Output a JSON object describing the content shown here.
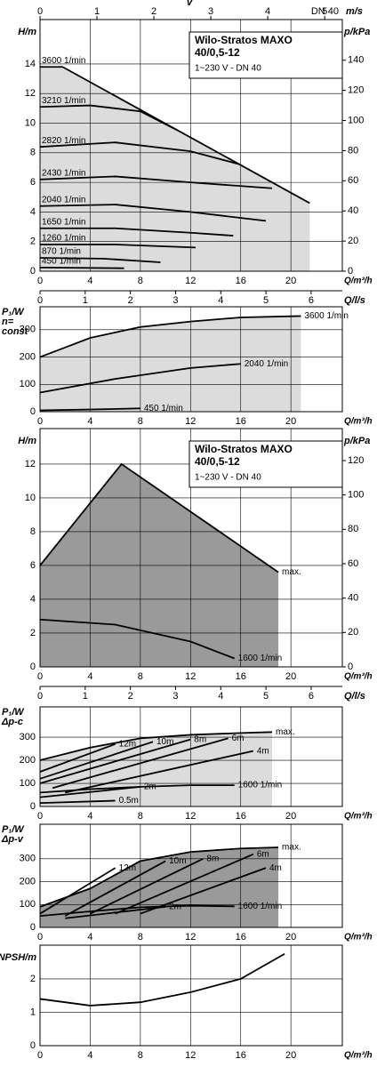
{
  "chart_data": [
    {
      "type": "line",
      "title_lines": [
        "Wilo-Stratos MAXO",
        "40/0,5-12"
      ],
      "subtitle": "1~230 V - DN 40",
      "y_label": "H/m",
      "y2_label": "p/kPa",
      "x_label": "Q/m³/h",
      "x2_label": "Q/l/s",
      "x3_label": "v",
      "x3_unit": "m/s",
      "x3_note": "DN 40",
      "xlim": [
        0,
        24.1
      ],
      "xticks": [
        0,
        4,
        8,
        12,
        16,
        20
      ],
      "x2lim": [
        0,
        6.69
      ],
      "x2ticks": [
        0,
        1,
        2,
        3,
        4,
        5,
        6
      ],
      "x3lim": [
        0,
        5.31
      ],
      "x3ticks": [
        0,
        1,
        2,
        3,
        4,
        5
      ],
      "ylim": [
        0,
        17
      ],
      "yticks": [
        0,
        2,
        4,
        6,
        8,
        10,
        12,
        14
      ],
      "y2lim": [
        0,
        167
      ],
      "y2ticks": [
        0,
        20,
        40,
        60,
        80,
        100,
        120,
        140
      ],
      "grid": true,
      "shade_color": "#dcdcdc",
      "series_label": "start",
      "series": [
        {
          "name": "3600 1/min",
          "color": "#000000",
          "x": [
            0,
            1.8,
            21.5
          ],
          "values": [
            13.8,
            13.8,
            4.6
          ]
        },
        {
          "name": "3210 1/min",
          "color": "#000000",
          "x": [
            0,
            4,
            8,
            11
          ],
          "values": [
            11.1,
            11.2,
            10.8,
            9.5
          ]
        },
        {
          "name": "2820 1/min",
          "color": "#000000",
          "x": [
            0,
            6,
            12,
            16
          ],
          "values": [
            8.4,
            8.7,
            8.1,
            7.2
          ]
        },
        {
          "name": "2430 1/min",
          "color": "#000000",
          "x": [
            0,
            6,
            12,
            18.5
          ],
          "values": [
            6.2,
            6.4,
            6.0,
            5.6
          ]
        },
        {
          "name": "2040 1/min",
          "color": "#000000",
          "x": [
            0,
            6,
            12,
            18
          ],
          "values": [
            4.4,
            4.5,
            4.0,
            3.4
          ]
        },
        {
          "name": "1650 1/min",
          "color": "#000000",
          "x": [
            0,
            6,
            12,
            15.4
          ],
          "values": [
            2.9,
            2.9,
            2.6,
            2.4
          ]
        },
        {
          "name": "1260 1/min",
          "color": "#000000",
          "x": [
            0,
            6,
            12.4
          ],
          "values": [
            1.8,
            1.8,
            1.6
          ]
        },
        {
          "name": "870 1/min",
          "color": "#000000",
          "x": [
            0,
            5,
            9.6
          ],
          "values": [
            0.9,
            0.85,
            0.6
          ]
        },
        {
          "name": "450 1/min",
          "color": "#000000",
          "x": [
            0,
            6.7
          ],
          "values": [
            0.25,
            0.2
          ]
        }
      ]
    },
    {
      "type": "line",
      "y_label_lines": [
        "P₁/W",
        "n=",
        "const"
      ],
      "x_label": "Q/m³/h",
      "xlim": [
        0,
        24.1
      ],
      "xticks": [
        0,
        4,
        8,
        12,
        16,
        20
      ],
      "ylim": [
        0,
        384
      ],
      "yticks": [
        0,
        100,
        200,
        300
      ],
      "grid": true,
      "shade_color": "#dcdcdc",
      "series_label": "end",
      "series": [
        {
          "name": "3600 1/min",
          "color": "#000000",
          "x": [
            0,
            4,
            8,
            12,
            16,
            20.8
          ],
          "values": [
            200,
            270,
            310,
            330,
            345,
            350
          ]
        },
        {
          "name": "2040 1/min",
          "color": "#000000",
          "x": [
            0,
            6,
            12,
            16
          ],
          "values": [
            70,
            120,
            160,
            175
          ]
        },
        {
          "name": "450 1/min",
          "color": "#000000",
          "x": [
            0,
            4,
            8
          ],
          "values": [
            5,
            8,
            12
          ]
        }
      ]
    },
    {
      "type": "line",
      "title_lines": [
        "Wilo-Stratos MAXO",
        "40/0,5-12"
      ],
      "subtitle": "1~230 V - DN 40",
      "y_label": "H/m",
      "y2_label": "p/kPa",
      "x_label": "Q/m³/h",
      "x2_label": "Q/l/s",
      "xlim": [
        0,
        24.1
      ],
      "xticks": [
        0,
        4,
        8,
        12,
        16,
        20
      ],
      "x2lim": [
        0,
        6.69
      ],
      "x2ticks": [
        0,
        1,
        2,
        3,
        4,
        5,
        6
      ],
      "ylim": [
        0,
        14.1
      ],
      "yticks": [
        0,
        2,
        4,
        6,
        8,
        10,
        12
      ],
      "y2lim": [
        0,
        138.6
      ],
      "y2ticks": [
        0,
        20,
        40,
        60,
        80,
        100,
        120
      ],
      "grid": true,
      "shade_color": "#9a9a9a",
      "series_label": "end",
      "series": [
        {
          "name": "max.",
          "color": "#000000",
          "x": [
            0,
            6.5,
            19
          ],
          "values": [
            6,
            12,
            5.6
          ]
        },
        {
          "name": "1600 1/min",
          "color": "#000000",
          "x": [
            0,
            6,
            12,
            15.5
          ],
          "values": [
            2.8,
            2.5,
            1.5,
            0.5
          ]
        }
      ]
    },
    {
      "type": "line",
      "y_label_lines": [
        "P₁/W",
        "Δp-c"
      ],
      "x_label": "Q/m³/h",
      "xlim": [
        0,
        24.1
      ],
      "xticks": [
        0,
        4,
        8,
        12,
        16,
        20
      ],
      "ylim": [
        0,
        431
      ],
      "yticks": [
        0,
        100,
        200,
        300
      ],
      "grid": true,
      "shade_color": "#dcdcdc",
      "series_label": "end",
      "series": [
        {
          "name": "max.",
          "color": "#000000",
          "x": [
            0,
            4,
            8,
            12,
            16,
            18.5
          ],
          "values": [
            200,
            255,
            295,
            310,
            318,
            322
          ]
        },
        {
          "name": "12m",
          "color": "#000000",
          "x": [
            0,
            6
          ],
          "values": [
            150,
            270
          ]
        },
        {
          "name": "10m",
          "color": "#000000",
          "x": [
            0,
            9
          ],
          "values": [
            120,
            280
          ]
        },
        {
          "name": "8m",
          "color": "#000000",
          "x": [
            0,
            12
          ],
          "values": [
            100,
            290
          ]
        },
        {
          "name": "6m",
          "color": "#000000",
          "x": [
            1,
            15
          ],
          "values": [
            80,
            295
          ]
        },
        {
          "name": "4m",
          "color": "#000000",
          "x": [
            2,
            17
          ],
          "values": [
            60,
            240
          ]
        },
        {
          "name": "2m",
          "color": "#000000",
          "x": [
            0,
            8
          ],
          "values": [
            40,
            85
          ]
        },
        {
          "name": "0.5m",
          "color": "#000000",
          "x": [
            0,
            6
          ],
          "values": [
            15,
            25
          ]
        },
        {
          "name": "1600 1/min",
          "color": "#000000",
          "x": [
            0,
            4,
            8,
            12,
            15.5
          ],
          "values": [
            60,
            75,
            85,
            92,
            92
          ]
        }
      ]
    },
    {
      "type": "line",
      "y_label_lines": [
        "P₁/W",
        "Δp-v"
      ],
      "x_label": "Q/m³/h",
      "xlim": [
        0,
        24.1
      ],
      "xticks": [
        0,
        4,
        8,
        12,
        16,
        20
      ],
      "ylim": [
        0,
        451
      ],
      "yticks": [
        0,
        100,
        200,
        300
      ],
      "grid": true,
      "shade_color": "#9a9a9a",
      "series_label": "end",
      "series": [
        {
          "name": "max.",
          "color": "#000000",
          "x": [
            0,
            4,
            8,
            12,
            16,
            19
          ],
          "values": [
            90,
            170,
            290,
            330,
            345,
            350
          ]
        },
        {
          "name": "12m",
          "color": "#000000",
          "x": [
            0,
            6
          ],
          "values": [
            60,
            260
          ]
        },
        {
          "name": "10m",
          "color": "#000000",
          "x": [
            2,
            10
          ],
          "values": [
            50,
            290
          ]
        },
        {
          "name": "8m",
          "color": "#000000",
          "x": [
            4,
            13
          ],
          "values": [
            60,
            300
          ]
        },
        {
          "name": "6m",
          "color": "#000000",
          "x": [
            6,
            17
          ],
          "values": [
            60,
            320
          ]
        },
        {
          "name": "4m",
          "color": "#000000",
          "x": [
            8,
            18
          ],
          "values": [
            60,
            260
          ]
        },
        {
          "name": "2m",
          "color": "#000000",
          "x": [
            2,
            10
          ],
          "values": [
            40,
            90
          ]
        },
        {
          "name": "1600 1/min",
          "color": "#000000",
          "x": [
            0,
            4,
            8,
            12,
            15.5
          ],
          "values": [
            50,
            70,
            88,
            95,
            92
          ]
        }
      ]
    },
    {
      "type": "line",
      "y_label": "NPSH/m",
      "x_label": "Q/m³/h",
      "xlim": [
        0,
        24.1
      ],
      "xticks": [
        0,
        4,
        8,
        12,
        16,
        20
      ],
      "ylim": [
        0,
        3.01
      ],
      "yticks": [
        0,
        1,
        2
      ],
      "grid": true,
      "series_label": "end",
      "series": [
        {
          "color": "#000000",
          "x": [
            0,
            4,
            8,
            12,
            16,
            19.5
          ],
          "values": [
            1.4,
            1.2,
            1.3,
            1.6,
            2.0,
            2.75
          ]
        }
      ]
    }
  ]
}
